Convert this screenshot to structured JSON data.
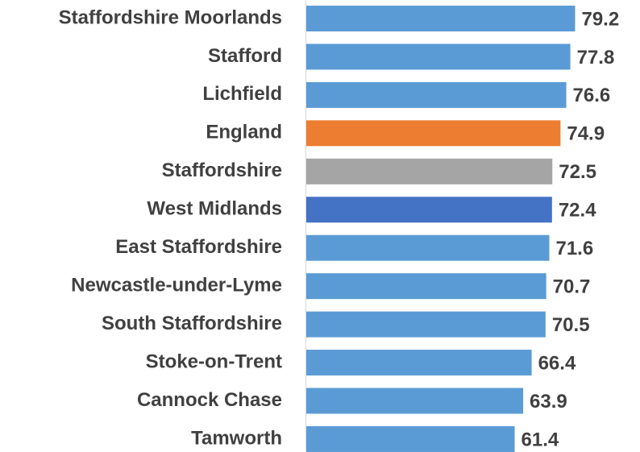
{
  "chart_data": {
    "type": "bar",
    "orientation": "horizontal",
    "categories": [
      "Staffordshire Moorlands",
      "Stafford",
      "Lichfield",
      "England",
      "Staffordshire",
      "West Midlands",
      "East Staffordshire",
      "Newcastle-under-Lyme",
      "South Staffordshire",
      "Stoke-on-Trent",
      "Cannock Chase",
      "Tamworth"
    ],
    "values": [
      79.2,
      77.8,
      76.6,
      74.9,
      72.5,
      72.4,
      71.6,
      70.7,
      70.5,
      66.4,
      63.9,
      61.4
    ],
    "colors": [
      "#5b9bd5",
      "#5b9bd5",
      "#5b9bd5",
      "#ed7d31",
      "#a5a5a5",
      "#4472c4",
      "#5b9bd5",
      "#5b9bd5",
      "#5b9bd5",
      "#5b9bd5",
      "#5b9bd5",
      "#5b9bd5"
    ],
    "xlim": [
      0,
      95
    ]
  }
}
